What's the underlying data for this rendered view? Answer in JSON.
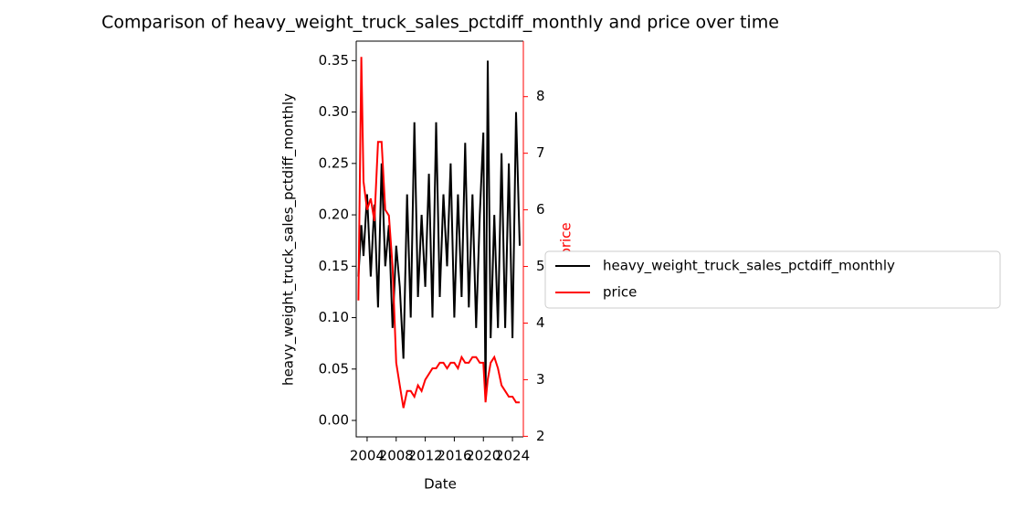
{
  "chart_data": {
    "type": "line",
    "title": "Comparison of heavy_weight_truck_sales_pctdiff_monthly and price over time",
    "x_label": "Date",
    "y_label": "heavy_weight_truck_sales_pctdiff_monthly",
    "y2_label": "price",
    "x": [
      2002.8,
      2003.2,
      2003.5,
      2004.0,
      2004.5,
      2005.0,
      2005.5,
      2006.0,
      2006.5,
      2007.0,
      2007.5,
      2008.0,
      2008.5,
      2009.0,
      2009.5,
      2010.0,
      2010.5,
      2011.0,
      2011.5,
      2012.0,
      2012.5,
      2013.0,
      2013.5,
      2014.0,
      2014.5,
      2015.0,
      2015.5,
      2016.0,
      2016.5,
      2017.0,
      2017.5,
      2018.0,
      2018.5,
      2019.0,
      2019.5,
      2020.0,
      2020.3,
      2020.6,
      2021.0,
      2021.5,
      2022.0,
      2022.5,
      2023.0,
      2023.5,
      2024.0,
      2024.5,
      2025.0
    ],
    "series": [
      {
        "name": "heavy_weight_truck_sales_pctdiff_monthly",
        "color": "#000000",
        "axis": "y",
        "values": [
          0.14,
          0.19,
          0.16,
          0.22,
          0.14,
          0.21,
          0.11,
          0.25,
          0.15,
          0.19,
          0.09,
          0.17,
          0.13,
          0.06,
          0.22,
          0.1,
          0.29,
          0.12,
          0.2,
          0.13,
          0.24,
          0.1,
          0.29,
          0.12,
          0.22,
          0.15,
          0.25,
          0.1,
          0.22,
          0.12,
          0.27,
          0.11,
          0.22,
          0.09,
          0.2,
          0.28,
          0.02,
          0.35,
          0.08,
          0.2,
          0.09,
          0.26,
          0.09,
          0.25,
          0.08,
          0.3,
          0.17
        ]
      },
      {
        "name": "price",
        "color": "#ff0000",
        "axis": "y2",
        "values": [
          4.4,
          8.7,
          6.5,
          6.0,
          6.2,
          5.8,
          7.2,
          7.2,
          6.0,
          5.9,
          5.0,
          3.3,
          2.9,
          2.5,
          2.8,
          2.8,
          2.7,
          2.9,
          2.8,
          3.0,
          3.1,
          3.2,
          3.2,
          3.3,
          3.3,
          3.2,
          3.3,
          3.3,
          3.2,
          3.4,
          3.3,
          3.3,
          3.4,
          3.4,
          3.3,
          3.3,
          2.6,
          3.0,
          3.3,
          3.4,
          3.2,
          2.9,
          2.8,
          2.7,
          2.7,
          2.6,
          2.6
        ]
      }
    ],
    "xlim": [
      2002.5,
      2025.5
    ],
    "xticks": [
      2004,
      2008,
      2012,
      2016,
      2020,
      2024
    ],
    "ylim": [
      -0.016,
      0.369
    ],
    "yticks": [
      {
        "value": 0,
        "label": "0.00"
      },
      {
        "value": 0.05,
        "label": "0.05"
      },
      {
        "value": 0.1,
        "label": "0.10"
      },
      {
        "value": 0.15,
        "label": "0.15"
      },
      {
        "value": 0.2,
        "label": "0.20"
      },
      {
        "value": 0.25,
        "label": "0.25"
      },
      {
        "value": 0.3,
        "label": "0.30"
      },
      {
        "value": 0.35,
        "label": "0.35"
      }
    ],
    "y2lim": [
      1.99,
      8.98
    ],
    "y2ticks": [
      2,
      3,
      4,
      5,
      6,
      7,
      8
    ],
    "y2_color": "#ff0000"
  }
}
